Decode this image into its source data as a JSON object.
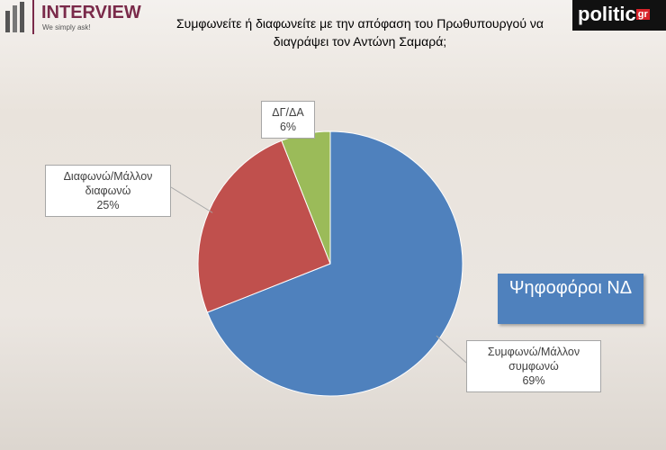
{
  "chart_data": {
    "type": "pie",
    "title": "Συμφωνείτε ή διαφωνείτε με την απόφαση του Πρωθυπουργού να διαγράψει τον Αντώνη Σαμαρά;",
    "categories": [
      "Συμφωνώ/Μάλλον συμφωνώ",
      "Διαφωνώ/Μάλλον διαφωνώ",
      "ΔΓ/ΔΑ"
    ],
    "values": [
      69,
      25,
      6
    ],
    "value_labels": [
      "69%",
      "25%",
      "6%"
    ],
    "colors": [
      "#4f81bd",
      "#c0504d",
      "#9bbb59"
    ],
    "annotation": "Ψηφοφόροι ΝΔ"
  },
  "branding": {
    "left_logo": "INTERVIEW",
    "left_tagline": "We simply ask!",
    "right_logo": "politic",
    "right_logo_suffix": "gr"
  }
}
